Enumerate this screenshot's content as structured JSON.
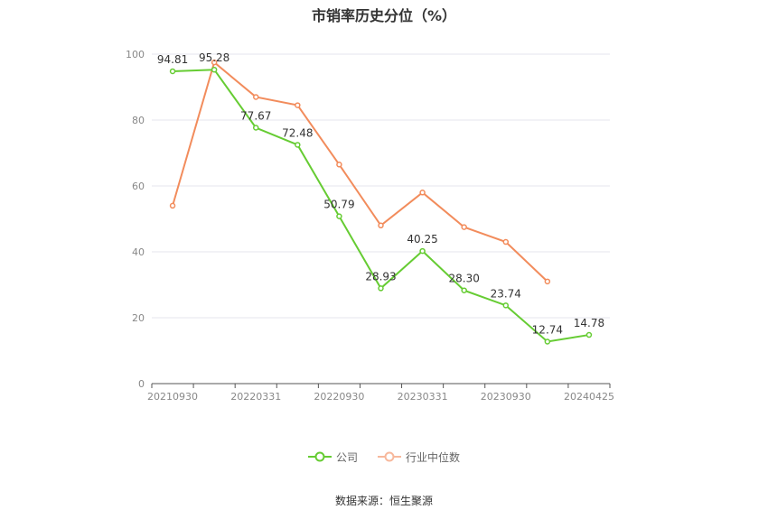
{
  "chart_data": {
    "type": "line",
    "title": "市销率历史分位（%）",
    "ylim": [
      0,
      100
    ],
    "yticks": [
      0,
      20,
      40,
      60,
      80,
      100
    ],
    "x_tick_labels": [
      "20210930",
      "20220331",
      "20220930",
      "20230331",
      "20230930",
      "20240425"
    ],
    "grid": true,
    "legend_position": "bottom",
    "series": [
      {
        "name": "公司",
        "color": "#66cc33",
        "values": [
          94.81,
          95.28,
          77.67,
          72.48,
          50.79,
          28.93,
          40.25,
          28.3,
          23.74,
          12.74,
          14.78
        ],
        "labels": [
          "94.81",
          "95.28",
          "77.67",
          "72.48",
          "50.79",
          "28.93",
          "40.25",
          "28.30",
          "23.74",
          "12.74",
          "14.78"
        ]
      },
      {
        "name": "行业中位数",
        "color": "#f28c5c",
        "values": [
          54.0,
          97.5,
          87.0,
          84.5,
          66.5,
          48.0,
          58.0,
          47.5,
          43.0,
          31.0,
          null
        ]
      }
    ]
  },
  "source": "数据来源：恒生聚源"
}
